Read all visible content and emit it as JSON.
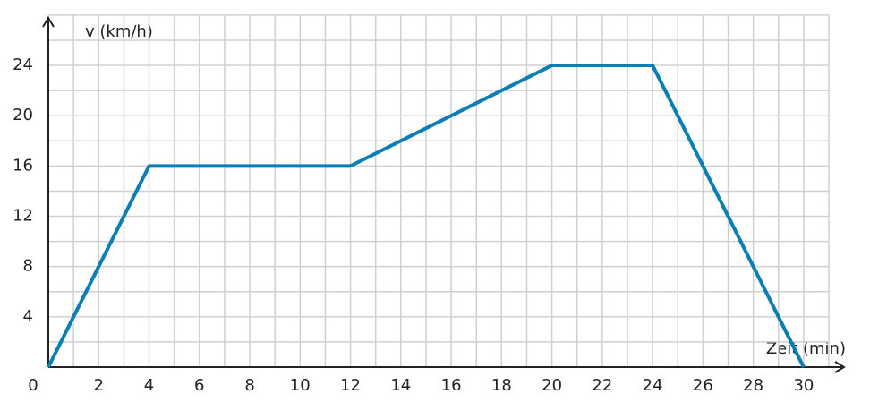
{
  "chart_data": {
    "type": "line",
    "y_label": "v (km/h)",
    "x_label": "Zeit (min)",
    "x": [
      0,
      4,
      12,
      20,
      24,
      30
    ],
    "series": [
      {
        "color": "#0b7fb3",
        "values": [
          0,
          16,
          16,
          24,
          24,
          0
        ]
      }
    ],
    "xlim": [
      0,
      31
    ],
    "ylim": [
      0,
      28
    ],
    "xticks": [
      0,
      2,
      4,
      6,
      8,
      10,
      12,
      14,
      16,
      18,
      20,
      22,
      24,
      26,
      28,
      30
    ],
    "yticks": [
      4,
      8,
      12,
      16,
      20,
      24
    ],
    "x_minor_grid": [
      1,
      3,
      5,
      7,
      9,
      11,
      13,
      15,
      17,
      19,
      21,
      23,
      25,
      27,
      29,
      31
    ],
    "y_minor_grid": [
      2,
      6,
      10,
      14,
      18,
      22,
      26,
      28
    ],
    "grid": true
  }
}
